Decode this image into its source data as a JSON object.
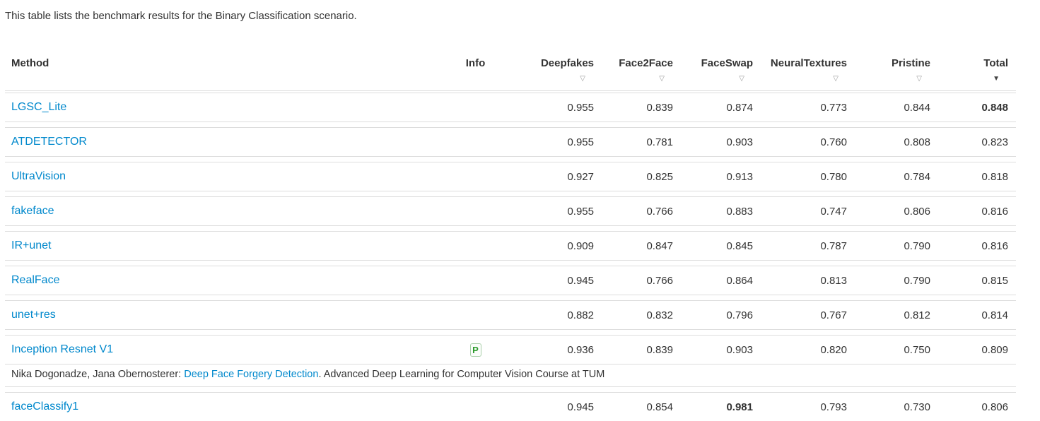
{
  "intro": "This table lists the benchmark results for the Binary Classification scenario.",
  "icons": {
    "sort_inactive": "▽",
    "sort_active": "▼"
  },
  "colors": {
    "link_blue": "#0088cc",
    "pristine_highlight": "#fcf8dc",
    "badge_green": "#2d9c2d",
    "row_border": "#dddddd",
    "text": "#333333"
  },
  "table": {
    "columns": {
      "method": "Method",
      "info": "Info",
      "deepfakes": "Deepfakes",
      "face2face": "Face2Face",
      "faceswap": "FaceSwap",
      "neuraltextures": "NeuralTextures",
      "pristine": "Pristine",
      "total": "Total"
    },
    "sort": {
      "active_column": "Total"
    },
    "info_badge": {
      "label": "P"
    },
    "citation": {
      "authors_prefix": "Nika Dogonadze, Jana Obernosterer: ",
      "link_text": "Deep Face Forgery Detection",
      "suffix": ". Advanced Deep Learning for Computer Vision Course at TUM"
    },
    "rows": [
      {
        "method": "LGSC_Lite",
        "deepfakes": "0.955",
        "face2face": "0.839",
        "faceswap": "0.874",
        "neuraltextures": "0.773",
        "pristine": "0.844",
        "total": "0.848"
      },
      {
        "method": "ATDETECTOR",
        "deepfakes": "0.955",
        "face2face": "0.781",
        "faceswap": "0.903",
        "neuraltextures": "0.760",
        "pristine": "0.808",
        "total": "0.823"
      },
      {
        "method": "UltraVision",
        "deepfakes": "0.927",
        "face2face": "0.825",
        "faceswap": "0.913",
        "neuraltextures": "0.780",
        "pristine": "0.784",
        "total": "0.818"
      },
      {
        "method": "fakeface",
        "deepfakes": "0.955",
        "face2face": "0.766",
        "faceswap": "0.883",
        "neuraltextures": "0.747",
        "pristine": "0.806",
        "total": "0.816"
      },
      {
        "method": "IR+unet",
        "deepfakes": "0.909",
        "face2face": "0.847",
        "faceswap": "0.845",
        "neuraltextures": "0.787",
        "pristine": "0.790",
        "total": "0.816"
      },
      {
        "method": "RealFace",
        "deepfakes": "0.945",
        "face2face": "0.766",
        "faceswap": "0.864",
        "neuraltextures": "0.813",
        "pristine": "0.790",
        "total": "0.815"
      },
      {
        "method": "unet+res",
        "deepfakes": "0.882",
        "face2face": "0.832",
        "faceswap": "0.796",
        "neuraltextures": "0.767",
        "pristine": "0.812",
        "total": "0.814"
      },
      {
        "method": "Inception Resnet V1",
        "deepfakes": "0.936",
        "face2face": "0.839",
        "faceswap": "0.903",
        "neuraltextures": "0.820",
        "pristine": "0.750",
        "total": "0.809"
      },
      {
        "method": "faceClassify1",
        "deepfakes": "0.945",
        "face2face": "0.854",
        "faceswap": "0.981",
        "neuraltextures": "0.793",
        "pristine": "0.730",
        "total": "0.806"
      }
    ]
  }
}
